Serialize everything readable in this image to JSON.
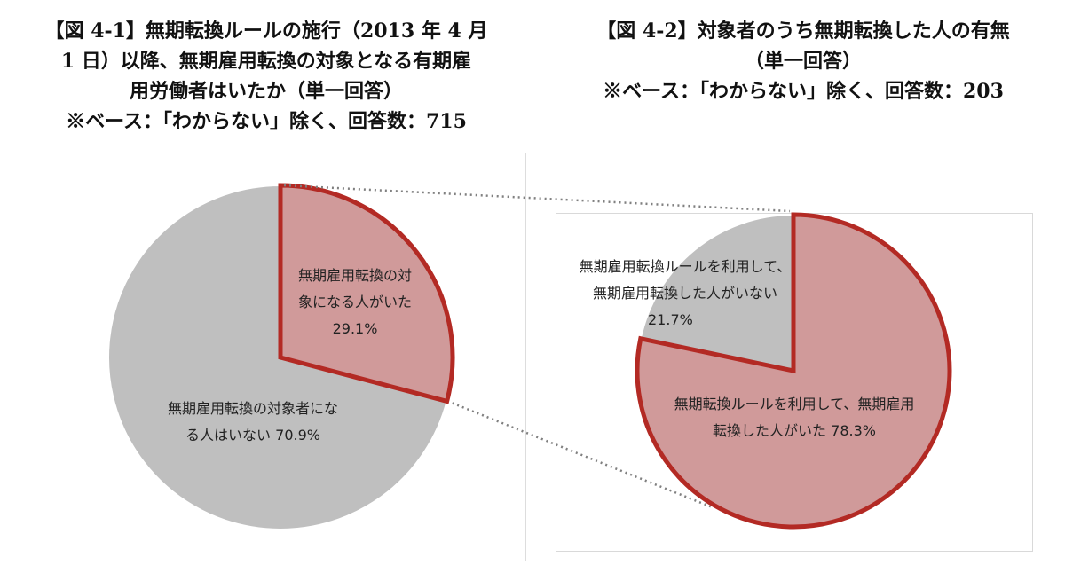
{
  "figures": {
    "left": {
      "title_lines": [
        "【図 4-1】無期転換ルールの施行（2013 年 4 月",
        "1 日）以降、無期雇用転換の対象となる有期雇",
        "用労働者はいたか（単一回答）",
        "※ベース：「わからない」除く、回答数：715"
      ]
    },
    "right": {
      "title_lines": [
        "【図 4-2】対象者のうち無期転換した人の有無",
        "（単一回答）",
        "※ベース：「わからない」除く、回答数：203"
      ]
    }
  },
  "colors": {
    "highlight_fill": "#d09a9a",
    "highlight_stroke": "#b32a24",
    "other_fill": "#bfbfbf",
    "connector": "#808080"
  },
  "chart_data": [
    {
      "type": "pie",
      "slices": [
        {
          "label_lines": [
            "無期雇用転換の対",
            "象になる人がいた"
          ],
          "value_text": "29.1%",
          "value": 29.1,
          "highlight": true
        },
        {
          "label_lines": [
            "無期雇用転換の対象者にな",
            "る人はいない"
          ],
          "value_text": "70.9%",
          "value": 70.9,
          "highlight": false
        }
      ]
    },
    {
      "type": "pie",
      "slices": [
        {
          "label_lines": [
            "無期転換ルールを利用して、無期雇用",
            "転換した人がいた"
          ],
          "value_text": "78.3%",
          "value": 78.3,
          "highlight": true
        },
        {
          "label_lines": [
            "無期雇用転換ルールを利用して、",
            "無期雇用転換した人がいない"
          ],
          "value_text": "21.7%",
          "value": 21.7,
          "highlight": false
        }
      ]
    }
  ]
}
